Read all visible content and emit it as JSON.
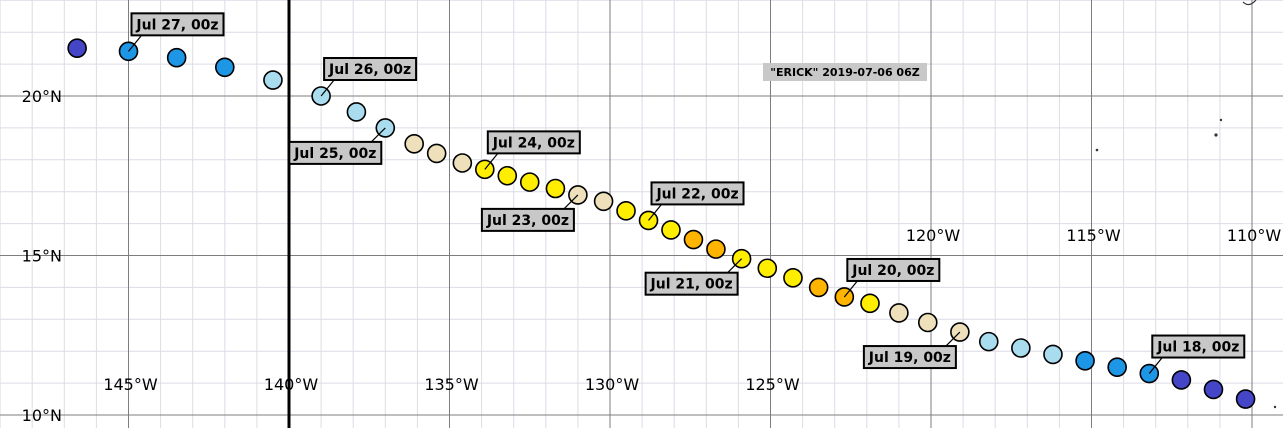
{
  "map": {
    "title_label": "\"ERICK\" 2019-07-06 06Z",
    "lon_labels": [
      {
        "lon": -145,
        "text": "145°W",
        "row": "bottom"
      },
      {
        "lon": -140,
        "text": "140°W",
        "row": "bottom"
      },
      {
        "lon": -135,
        "text": "135°W",
        "row": "bottom"
      },
      {
        "lon": -130,
        "text": "130°W",
        "row": "bottom"
      },
      {
        "lon": -125,
        "text": "125°W",
        "row": "bottom"
      },
      {
        "lon": -120,
        "text": "120°W",
        "row": "mid"
      },
      {
        "lon": -115,
        "text": "115°W",
        "row": "mid"
      },
      {
        "lon": -110,
        "text": "110°W",
        "row": "mid"
      }
    ],
    "lat_labels": [
      {
        "lat": 20,
        "text": "20°N"
      },
      {
        "lat": 15,
        "text": "15°N"
      },
      {
        "lat": 10,
        "text": "10°N"
      }
    ],
    "dateline_marker_lon": -140,
    "colors": {
      "grid_minor": "#dcdce6",
      "grid_major": "#7d7d7d",
      "meridian": "#000000",
      "label_box_bg": "#c8c8c8",
      "title_box_bg": "#c8c8c8",
      "cat_deep_blue": "#4545c8",
      "cat_blue": "#1e96e6",
      "cat_light_blue": "#a8dcee",
      "cat_cream": "#ede0ba",
      "cat_yellow": "#ffee00",
      "cat_orange": "#ffb400"
    },
    "track_points": [
      {
        "lon": -146.6,
        "lat": 21.5,
        "color": "cat_deep_blue"
      },
      {
        "lon": -145.0,
        "lat": 21.4,
        "color": "cat_blue"
      },
      {
        "lon": -143.5,
        "lat": 21.2,
        "color": "cat_blue"
      },
      {
        "lon": -142.0,
        "lat": 20.9,
        "color": "cat_blue"
      },
      {
        "lon": -140.5,
        "lat": 20.5,
        "color": "cat_light_blue"
      },
      {
        "lon": -139.0,
        "lat": 20.0,
        "color": "cat_light_blue"
      },
      {
        "lon": -137.9,
        "lat": 19.5,
        "color": "cat_light_blue"
      },
      {
        "lon": -137.0,
        "lat": 19.0,
        "color": "cat_light_blue"
      },
      {
        "lon": -136.1,
        "lat": 18.5,
        "color": "cat_cream"
      },
      {
        "lon": -135.4,
        "lat": 18.2,
        "color": "cat_cream"
      },
      {
        "lon": -134.6,
        "lat": 17.9,
        "color": "cat_cream"
      },
      {
        "lon": -133.9,
        "lat": 17.7,
        "color": "cat_yellow"
      },
      {
        "lon": -133.2,
        "lat": 17.5,
        "color": "cat_yellow"
      },
      {
        "lon": -132.5,
        "lat": 17.3,
        "color": "cat_yellow"
      },
      {
        "lon": -131.7,
        "lat": 17.1,
        "color": "cat_yellow"
      },
      {
        "lon": -131.0,
        "lat": 16.9,
        "color": "cat_cream"
      },
      {
        "lon": -130.2,
        "lat": 16.7,
        "color": "cat_cream"
      },
      {
        "lon": -129.5,
        "lat": 16.4,
        "color": "cat_yellow"
      },
      {
        "lon": -128.8,
        "lat": 16.1,
        "color": "cat_yellow"
      },
      {
        "lon": -128.1,
        "lat": 15.8,
        "color": "cat_yellow"
      },
      {
        "lon": -127.4,
        "lat": 15.5,
        "color": "cat_orange"
      },
      {
        "lon": -126.7,
        "lat": 15.2,
        "color": "cat_orange"
      },
      {
        "lon": -125.9,
        "lat": 14.9,
        "color": "cat_yellow"
      },
      {
        "lon": -125.1,
        "lat": 14.6,
        "color": "cat_yellow"
      },
      {
        "lon": -124.3,
        "lat": 14.3,
        "color": "cat_yellow"
      },
      {
        "lon": -123.5,
        "lat": 14.0,
        "color": "cat_orange"
      },
      {
        "lon": -122.7,
        "lat": 13.7,
        "color": "cat_orange"
      },
      {
        "lon": -121.9,
        "lat": 13.5,
        "color": "cat_yellow"
      },
      {
        "lon": -121.0,
        "lat": 13.2,
        "color": "cat_cream"
      },
      {
        "lon": -120.1,
        "lat": 12.9,
        "color": "cat_cream"
      },
      {
        "lon": -119.1,
        "lat": 12.6,
        "color": "cat_cream"
      },
      {
        "lon": -118.2,
        "lat": 12.3,
        "color": "cat_light_blue"
      },
      {
        "lon": -117.2,
        "lat": 12.1,
        "color": "cat_light_blue"
      },
      {
        "lon": -116.2,
        "lat": 11.9,
        "color": "cat_light_blue"
      },
      {
        "lon": -115.2,
        "lat": 11.7,
        "color": "cat_blue"
      },
      {
        "lon": -114.2,
        "lat": 11.5,
        "color": "cat_blue"
      },
      {
        "lon": -113.2,
        "lat": 11.3,
        "color": "cat_blue"
      },
      {
        "lon": -112.2,
        "lat": 11.1,
        "color": "cat_deep_blue"
      },
      {
        "lon": -111.2,
        "lat": 10.8,
        "color": "cat_deep_blue"
      },
      {
        "lon": -110.2,
        "lat": 10.5,
        "color": "cat_deep_blue"
      }
    ],
    "date_labels": [
      {
        "text": "Jul 27, 00z",
        "point": 1,
        "side": "above"
      },
      {
        "text": "Jul 26, 00z",
        "point": 5,
        "side": "above"
      },
      {
        "text": "Jul 25, 00z",
        "point": 7,
        "side": "below"
      },
      {
        "text": "Jul 24, 00z",
        "point": 11,
        "side": "above"
      },
      {
        "text": "Jul 23, 00z",
        "point": 15,
        "side": "below"
      },
      {
        "text": "Jul 22, 00z",
        "point": 18,
        "side": "above"
      },
      {
        "text": "Jul 21, 00z",
        "point": 22,
        "side": "below"
      },
      {
        "text": "Jul 20, 00z",
        "point": 26,
        "side": "above"
      },
      {
        "text": "Jul 19, 00z",
        "point": 30,
        "side": "below"
      },
      {
        "text": "Jul 18, 00z",
        "point": 36,
        "side": "above"
      }
    ]
  }
}
